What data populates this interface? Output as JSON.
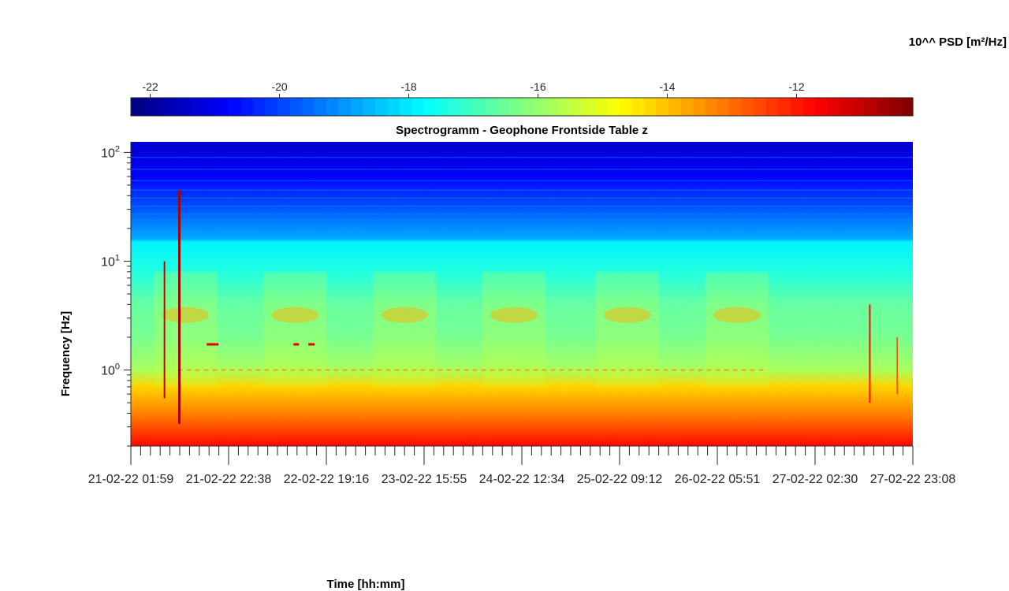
{
  "chart_data": {
    "type": "heatmap",
    "title": "Spectrogramm - Geophone Frontside Table z",
    "xlabel": "Time [hh:mm]",
    "ylabel": "Frequency [Hz]",
    "yscale": "log",
    "ylim": [
      0.2,
      125
    ],
    "y_ticks": [
      {
        "value": 100,
        "base": "10",
        "exp": "2"
      },
      {
        "value": 10,
        "base": "10",
        "exp": "1"
      },
      {
        "value": 1,
        "base": "10",
        "exp": "0"
      }
    ],
    "x_tick_labels": [
      "21-02-22 01:59",
      "21-02-22 22:38",
      "22-02-22 19:16",
      "23-02-22 15:55",
      "24-02-22 12:34",
      "25-02-22 09:12",
      "26-02-22 05:51",
      "27-02-22 02:30",
      "27-02-22 23:08"
    ],
    "colorbar": {
      "label": "10^^ PSD [m²/Hz]",
      "range": [
        -22.3,
        -10.2
      ],
      "ticks": [
        "-22",
        "-20",
        "-18",
        "-16",
        "-14",
        "-12"
      ],
      "tick_values": [
        -22,
        -20,
        -18,
        -16,
        -14,
        -12
      ],
      "colormap": "jet"
    },
    "psd_profile": [
      {
        "freq": 125,
        "log_psd": -21.4
      },
      {
        "freq": 60,
        "log_psd": -20.8
      },
      {
        "freq": 30,
        "log_psd": -19.8
      },
      {
        "freq": 16,
        "log_psd": -18.8
      },
      {
        "freq": 15,
        "log_psd": -17.9
      },
      {
        "freq": 8,
        "log_psd": -17.4
      },
      {
        "freq": 4,
        "log_psd": -16.6
      },
      {
        "freq": 2,
        "log_psd": -16.4
      },
      {
        "freq": 1,
        "log_psd": -15.8
      },
      {
        "freq": 0.7,
        "log_psd": -14.2
      },
      {
        "freq": 0.4,
        "log_psd": -13.2
      },
      {
        "freq": 0.2,
        "log_psd": -11.8
      }
    ]
  }
}
